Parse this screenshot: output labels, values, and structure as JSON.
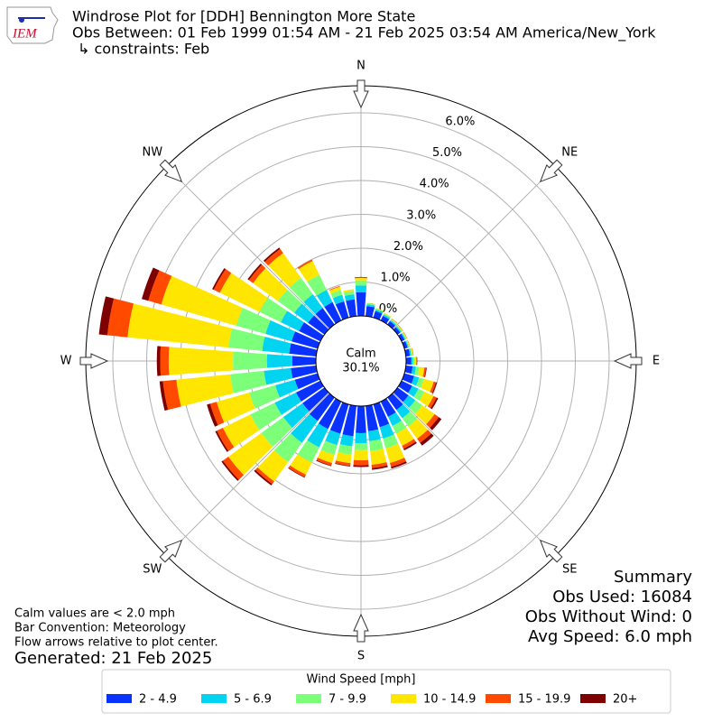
{
  "chart_data": {
    "type": "windrose",
    "title": "Windrose Plot for [DDH] Bennington More State",
    "subtitle": "Obs Between: 01 Feb 1999 01:54 AM - 21 Feb 2025 03:54 AM America/New_York",
    "constraints": "↳ constraints: Feb",
    "logo_text": "IEM",
    "calm_label": "Calm",
    "calm_value": "30.1%",
    "x": [
      0,
      10,
      20,
      30,
      40,
      50,
      60,
      70,
      80,
      90,
      100,
      110,
      120,
      130,
      140,
      150,
      160,
      170,
      180,
      190,
      200,
      210,
      220,
      230,
      240,
      250,
      260,
      270,
      280,
      290,
      300,
      310,
      320,
      330,
      340,
      350
    ],
    "xticks": [
      {
        "value": 0,
        "label": "N"
      },
      {
        "value": 45,
        "label": "NE"
      },
      {
        "value": 90,
        "label": "E"
      },
      {
        "value": 135,
        "label": "SE"
      },
      {
        "value": 180,
        "label": "S"
      },
      {
        "value": 225,
        "label": "SW"
      },
      {
        "value": 270,
        "label": "W"
      },
      {
        "value": 315,
        "label": "NW"
      }
    ],
    "ylim": [
      0,
      6.8
    ],
    "yticks": [
      {
        "value": 0,
        "label": "0.0%"
      },
      {
        "value": 1,
        "label": "1.0%"
      },
      {
        "value": 2,
        "label": "2.0%"
      },
      {
        "value": 3,
        "label": "3.0%"
      },
      {
        "value": 4,
        "label": "4.0%"
      },
      {
        "value": 5,
        "label": "5.0%"
      },
      {
        "value": 6,
        "label": "6.0%"
      }
    ],
    "grid": true,
    "legend_title": "Wind Speed [mph]",
    "series": [
      {
        "name": "2 - 4.9",
        "color": "#0a32ff",
        "values": [
          0.7,
          0.3,
          0.2,
          0.15,
          0.12,
          0.1,
          0.1,
          0.1,
          0.12,
          0.15,
          0.2,
          0.3,
          0.35,
          0.4,
          0.45,
          0.5,
          0.7,
          0.75,
          0.8,
          0.9,
          0.9,
          0.9,
          0.85,
          0.8,
          0.8,
          0.7,
          0.75,
          0.7,
          0.8,
          0.8,
          0.7,
          0.6,
          0.6,
          0.6,
          0.5,
          0.5
        ]
      },
      {
        "name": "5 - 6.9",
        "color": "#00d4f0",
        "values": [
          0.2,
          0.05,
          0.05,
          0.05,
          0.04,
          0.04,
          0.03,
          0.03,
          0.04,
          0.05,
          0.1,
          0.15,
          0.2,
          0.25,
          0.3,
          0.3,
          0.35,
          0.3,
          0.3,
          0.3,
          0.35,
          0.6,
          0.8,
          0.7,
          0.7,
          0.6,
          0.8,
          0.75,
          0.8,
          0.8,
          0.6,
          0.5,
          0.5,
          0.4,
          0.2,
          0.15
        ]
      },
      {
        "name": "7 - 9.9",
        "color": "#7cff79",
        "values": [
          0.15,
          0.04,
          0.03,
          0.03,
          0.03,
          0.03,
          0.03,
          0.02,
          0.03,
          0.05,
          0.1,
          0.15,
          0.2,
          0.25,
          0.3,
          0.25,
          0.3,
          0.3,
          0.2,
          0.25,
          0.3,
          0.5,
          0.7,
          0.8,
          0.8,
          0.8,
          1.0,
          1.0,
          1.0,
          0.9,
          0.7,
          0.6,
          0.6,
          0.5,
          0.15,
          0.1
        ]
      },
      {
        "name": "10 - 14.9",
        "color": "#ffe600",
        "values": [
          0.07,
          0.01,
          0.02,
          0.02,
          0.02,
          0.02,
          0.02,
          0.02,
          0.03,
          0.05,
          0.15,
          0.3,
          0.3,
          0.45,
          0.45,
          0.4,
          0.45,
          0.4,
          0.3,
          0.25,
          0.25,
          0.4,
          0.7,
          1.2,
          0.9,
          1.0,
          1.6,
          1.9,
          3.0,
          2.3,
          1.3,
          0.9,
          0.9,
          0.45,
          0.1,
          0.05
        ]
      },
      {
        "name": "15 - 19.9",
        "color": "#ff4a00",
        "values": [
          0.02,
          0,
          0,
          0,
          0.01,
          0.01,
          0.01,
          0.01,
          0.01,
          0.02,
          0.05,
          0.07,
          0.1,
          0.15,
          0.15,
          0.1,
          0.12,
          0.1,
          0.15,
          0.08,
          0.08,
          0.08,
          0.1,
          0.2,
          0.2,
          0.2,
          0.4,
          0.25,
          0.6,
          0.4,
          0.2,
          0.15,
          0.15,
          0.05,
          0.02,
          0
        ]
      },
      {
        "name": "20+",
        "color": "#7f0000",
        "values": [
          0.01,
          0,
          0,
          0,
          0,
          0,
          0,
          0,
          0,
          0.01,
          0.02,
          0.03,
          0.05,
          0.1,
          0.1,
          0.05,
          0.05,
          0.05,
          0.05,
          0.02,
          0.02,
          0.02,
          0.05,
          0.05,
          0.05,
          0.1,
          0.1,
          0.1,
          0.25,
          0.2,
          0.05,
          0.05,
          0.05,
          0,
          0,
          0
        ]
      }
    ],
    "notes": [
      "Calm values are < 2.0 mph",
      "Bar Convention: Meteorology",
      "Flow arrows relative to plot center."
    ],
    "generated": "Generated: 21 Feb 2025",
    "summary": [
      "Summary",
      "Obs Used: 16084",
      "Obs Without Wind: 0",
      "Avg Speed: 6.0 mph"
    ]
  }
}
